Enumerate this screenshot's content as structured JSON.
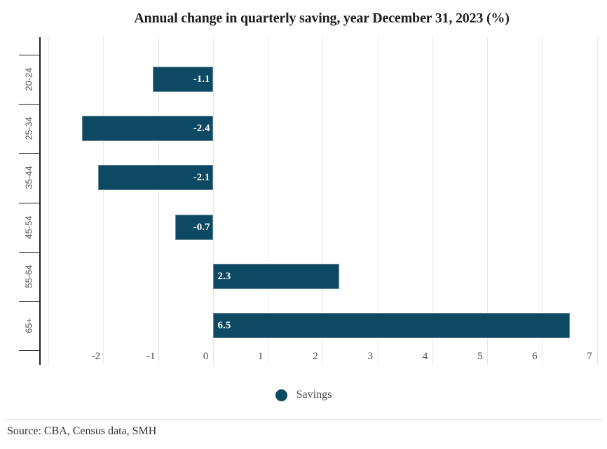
{
  "source_line": "Source: CBA, Census data, SMH",
  "colors": {
    "bar": "#0e4963",
    "axis": "#222222",
    "grid": "#e8e8e8",
    "x_label": "#4d4d4d",
    "cat_label": "#555555",
    "value_label": "#ffffff",
    "title": "#1e1e1e",
    "divider": "#d8d8d8",
    "source_text": "#333333"
  },
  "chart_data": {
    "type": "bar",
    "orientation": "horizontal",
    "title": "Annual change in quarterly saving, year December 31, 2023 (%)",
    "xlabel": "",
    "ylabel": "",
    "categories": [
      "20-24",
      "25-34",
      "35-44",
      "45-54",
      "55-64",
      "65+"
    ],
    "series": [
      {
        "name": "Savings",
        "values": [
          -1.1,
          -2.4,
          -2.1,
          -0.7,
          2.3,
          6.5
        ]
      }
    ],
    "data_labels": [
      "-1.1",
      "-2.4",
      "-2.1",
      "-0.7",
      "2.3",
      "6.5"
    ],
    "xlim": [
      -3.15,
      7.1
    ],
    "x_tick_values": [
      -2,
      -1,
      0,
      1,
      2,
      3,
      4,
      5,
      6,
      7
    ],
    "x_tick_labels": [
      "-2",
      "-1",
      "0",
      "1",
      "2",
      "3",
      "4",
      "5",
      "6",
      "7"
    ],
    "gridline_values": [
      -3,
      -2,
      -1,
      0,
      1,
      2,
      3,
      4,
      5,
      6,
      7
    ],
    "grid": true,
    "legend_position": "bottom"
  }
}
